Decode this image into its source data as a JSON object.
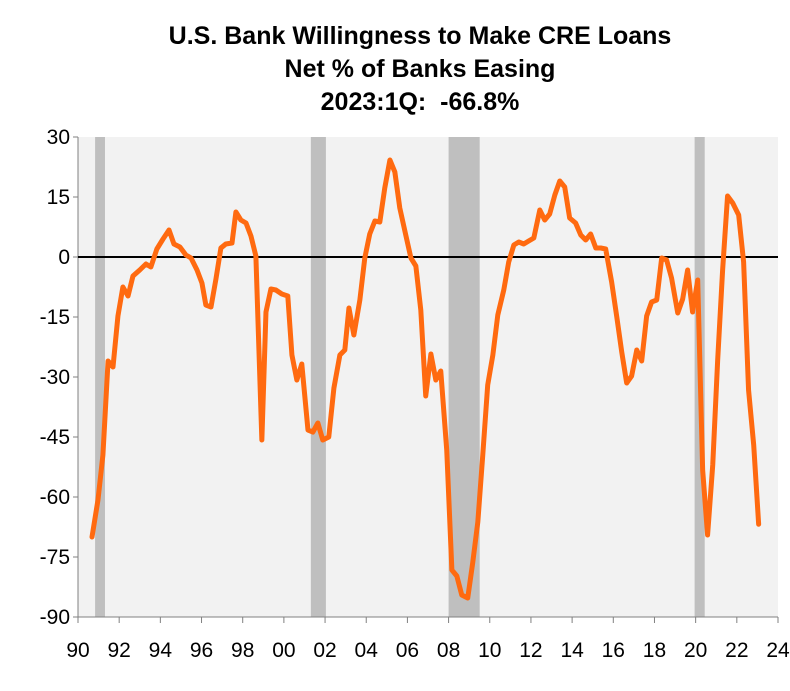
{
  "chart_data": {
    "type": "line",
    "title": "U.S. Bank Willingness to Make CRE Loans",
    "subtitle": "Net % of Banks Easing",
    "annotation": "2023:1Q:  -66.8%",
    "color": "#ff6a10",
    "shade_color": "#bfbfbf",
    "shaded_ranges": [
      [
        1990.83,
        1991.31
      ],
      [
        2001.31,
        2002.04
      ],
      [
        2008.0,
        2009.51
      ],
      [
        2019.95,
        2020.44
      ]
    ],
    "x": [
      1990.68,
      1990.97,
      1991.21,
      1991.46,
      1991.7,
      1991.94,
      1992.18,
      1992.43,
      1992.67,
      1993.0,
      1993.3,
      1993.54,
      1993.83,
      1994.13,
      1994.42,
      1994.66,
      1994.95,
      1995.24,
      1995.49,
      1995.78,
      1996.02,
      1996.21,
      1996.46,
      1996.7,
      1996.94,
      1997.18,
      1997.48,
      1997.67,
      1997.91,
      1998.16,
      1998.4,
      1998.64,
      1998.93,
      1999.13,
      1999.37,
      1999.61,
      1999.9,
      2000.19,
      2000.39,
      2000.63,
      2000.87,
      2001.17,
      2001.41,
      2001.65,
      2001.89,
      2002.18,
      2002.43,
      2002.72,
      2002.96,
      2003.16,
      2003.4,
      2003.69,
      2003.93,
      2004.17,
      2004.42,
      2004.66,
      2004.9,
      2005.15,
      2005.39,
      2005.63,
      2005.92,
      2006.17,
      2006.41,
      2006.65,
      2006.89,
      2007.14,
      2007.38,
      2007.62,
      2007.91,
      2008.16,
      2008.4,
      2008.64,
      2008.93,
      2009.17,
      2009.42,
      2009.66,
      2009.9,
      2010.15,
      2010.39,
      2010.68,
      2010.92,
      2011.17,
      2011.41,
      2011.65,
      2011.89,
      2012.14,
      2012.43,
      2012.67,
      2012.91,
      2013.16,
      2013.4,
      2013.64,
      2013.88,
      2014.17,
      2014.42,
      2014.66,
      2014.9,
      2015.15,
      2015.39,
      2015.63,
      2015.92,
      2016.17,
      2016.41,
      2016.65,
      2016.89,
      2017.14,
      2017.38,
      2017.62,
      2017.86,
      2018.11,
      2018.35,
      2018.59,
      2018.83,
      2019.13,
      2019.37,
      2019.61,
      2019.85,
      2020.1,
      2020.34,
      2020.58,
      2020.83,
      2021.07,
      2021.31,
      2021.55,
      2021.8,
      2022.09,
      2022.33,
      2022.57,
      2022.82,
      2023.06
    ],
    "values": [
      -70,
      -60.75,
      -49.5,
      -26,
      -27.5,
      -14.75,
      -7.5,
      -9.75,
      -4.75,
      -3.25,
      -1.75,
      -2.5,
      2,
      4.5,
      6.75,
      3.25,
      2.5,
      0.5,
      -0.25,
      -3.25,
      -6.5,
      -12,
      -12.5,
      -5.5,
      2.25,
      3.25,
      3.5,
      11.25,
      9.25,
      8.5,
      5.25,
      0.25,
      -45.75,
      -13.75,
      -8,
      -8.25,
      -9.25,
      -9.75,
      -24.5,
      -30.75,
      -26.75,
      -43.25,
      -43.75,
      -41.5,
      -45.75,
      -45,
      -32.75,
      -24.5,
      -23.25,
      -12.75,
      -19.5,
      -10.75,
      -0.25,
      5.75,
      9,
      8.75,
      17.25,
      24.25,
      21.25,
      12.25,
      5.5,
      -0.25,
      -2.25,
      -13.25,
      -34.75,
      -24.25,
      -30.75,
      -28.5,
      -48.25,
      -78.25,
      -79.75,
      -84.5,
      -85.25,
      -76.5,
      -66.25,
      -49.5,
      -32,
      -24.5,
      -14.5,
      -8.25,
      -1.25,
      3,
      3.75,
      3.25,
      4,
      4.75,
      11.75,
      9.25,
      10.75,
      15.5,
      19,
      17.5,
      9.75,
      8.5,
      5.5,
      4.25,
      5.75,
      2.25,
      2.25,
      2,
      -6.25,
      -15,
      -23.75,
      -31.5,
      -29.75,
      -23.25,
      -26,
      -14.75,
      -11.25,
      -10.75,
      -0.25,
      -0.75,
      -5.25,
      -14,
      -10.5,
      -3.25,
      -13.75,
      -5.75,
      -53.25,
      -69.5,
      -52,
      -25.75,
      -3.25,
      15.25,
      13.5,
      10.5,
      -1.25,
      -33.25,
      -47,
      -66.8
    ],
    "xlim": [
      1990,
      2024
    ],
    "xticks": [
      {
        "value": 1990,
        "label": "90"
      },
      {
        "value": 1992,
        "label": "92"
      },
      {
        "value": 1994,
        "label": "94"
      },
      {
        "value": 1996,
        "label": "96"
      },
      {
        "value": 1998,
        "label": "98"
      },
      {
        "value": 2000,
        "label": "00"
      },
      {
        "value": 2002,
        "label": "02"
      },
      {
        "value": 2004,
        "label": "04"
      },
      {
        "value": 2006,
        "label": "06"
      },
      {
        "value": 2008,
        "label": "08"
      },
      {
        "value": 2010,
        "label": "10"
      },
      {
        "value": 2012,
        "label": "12"
      },
      {
        "value": 2014,
        "label": "14"
      },
      {
        "value": 2016,
        "label": "16"
      },
      {
        "value": 2018,
        "label": "18"
      },
      {
        "value": 2020,
        "label": "20"
      },
      {
        "value": 2022,
        "label": "22"
      },
      {
        "value": 2024,
        "label": "24"
      }
    ],
    "ylim": [
      -90,
      30
    ],
    "yticks": [
      -90,
      -75,
      -60,
      -45,
      -30,
      -15,
      0,
      15,
      30
    ]
  }
}
